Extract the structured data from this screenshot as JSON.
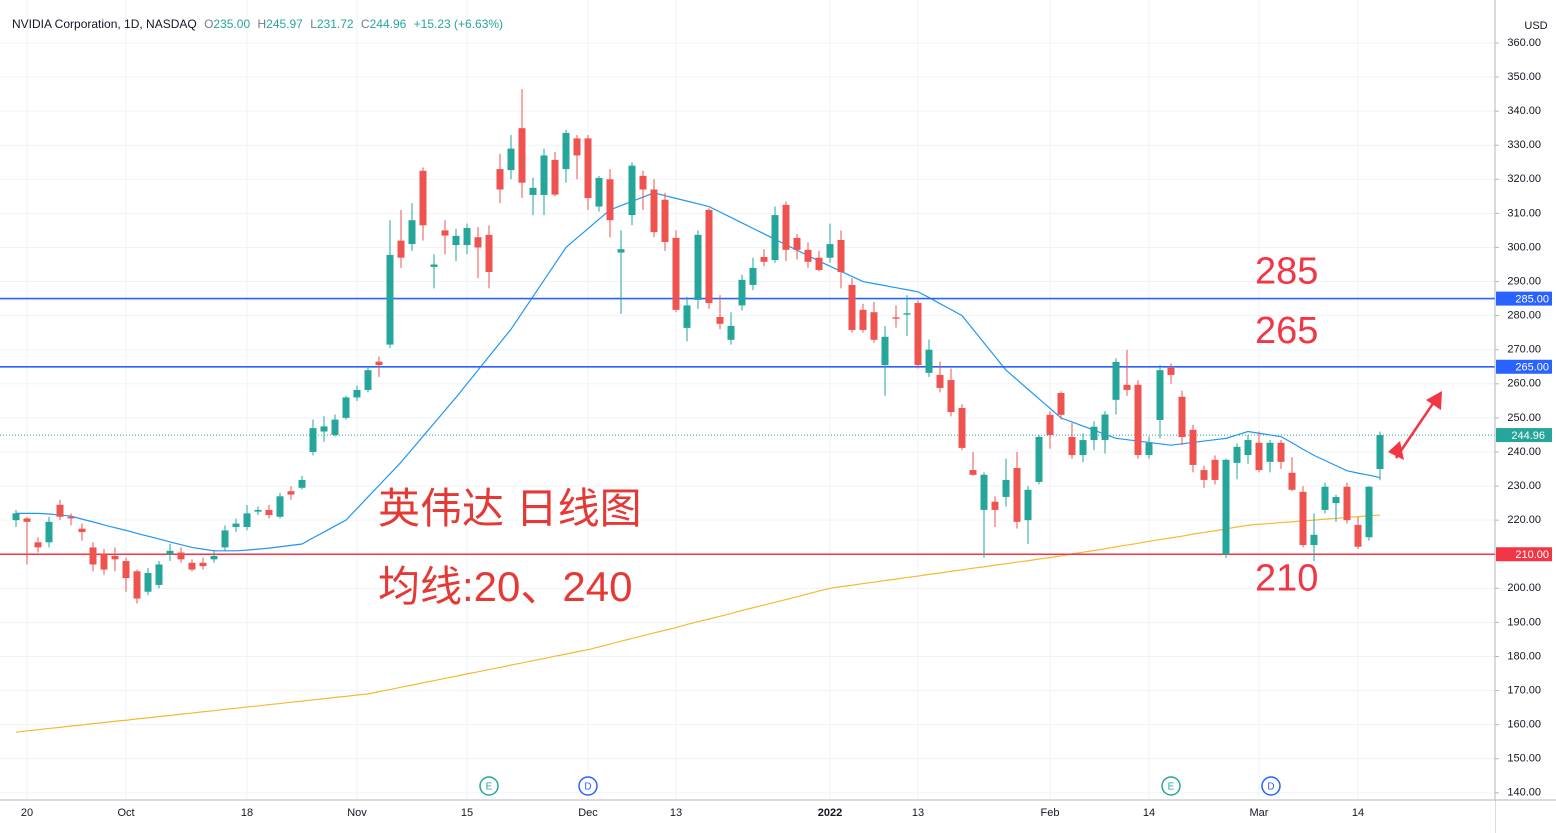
{
  "header": {
    "symbol": "NVIDIA Corporation, 1D, NASDAQ",
    "ohlc": [
      {
        "label": "O",
        "value": "235.00"
      },
      {
        "label": "H",
        "value": "245.97"
      },
      {
        "label": "L",
        "value": "231.72"
      },
      {
        "label": "C",
        "value": "244.96"
      }
    ],
    "change": "+15.23 (+6.63%)"
  },
  "chart_data": {
    "type": "candlestick",
    "categories": [
      null,
      "20",
      null,
      null,
      null,
      null,
      null,
      null,
      null,
      null,
      "Oct",
      null,
      null,
      null,
      null,
      null,
      null,
      null,
      null,
      null,
      null,
      "18",
      null,
      null,
      null,
      null,
      null,
      null,
      null,
      null,
      null,
      "Nov",
      null,
      null,
      null,
      null,
      null,
      null,
      null,
      null,
      null,
      "15",
      null,
      null,
      null,
      null,
      null,
      null,
      null,
      null,
      null,
      null,
      "Dec",
      null,
      null,
      null,
      null,
      null,
      null,
      null,
      "13",
      null,
      null,
      null,
      null,
      null,
      null,
      null,
      null,
      null,
      null,
      null,
      null,
      null,
      "2022",
      null,
      null,
      null,
      null,
      null,
      null,
      null,
      "13",
      null,
      null,
      null,
      null,
      null,
      null,
      null,
      null,
      null,
      null,
      null,
      "Feb",
      null,
      null,
      null,
      null,
      null,
      null,
      null,
      null,
      "14",
      null,
      null,
      null,
      null,
      null,
      null,
      null,
      null,
      null,
      "Mar",
      null,
      null,
      null,
      null,
      null,
      null,
      null,
      null,
      "14",
      null,
      null
    ],
    "open": [
      220,
      220.5,
      213.5,
      213.5,
      224.5,
      221,
      217.5,
      212,
      210,
      209.5,
      208,
      205,
      199,
      201,
      210,
      210.5,
      207.5,
      207.5,
      208.5,
      212,
      218,
      218,
      222.5,
      223,
      221,
      228.5,
      229.5,
      240,
      246,
      245,
      250,
      256,
      258.2,
      266.5,
      271.5,
      302,
      301,
      322.5,
      294.3,
      305,
      300.7,
      300.7,
      303,
      303.7,
      323,
      322.7,
      335,
      315.4,
      315.4,
      325.7,
      323,
      332,
      332,
      312,
      320,
      298.5,
      309.5,
      321,
      317,
      314,
      302.8,
      276.4,
      284.6,
      311,
      279.6,
      272.9,
      283,
      289,
      297.2,
      296.3,
      312.5,
      302.8,
      299.3,
      297,
      297,
      302.2,
      289,
      281.7,
      281,
      265.5,
      279.5,
      280.3,
      283.7,
      263.2,
      262.6,
      261.1,
      252.9,
      234.7,
      223,
      225.4,
      226.8,
      235.3,
      220,
      231.2,
      250.9,
      257.3,
      244.4,
      239.1,
      243.5,
      243.5,
      255.3,
      259.7,
      259.7,
      239.1,
      249.4,
      264.7,
      256.2,
      246.5,
      234.7,
      237.7,
      210,
      236.8,
      239.1,
      242.7,
      237.1,
      242.7,
      233.9,
      228.3,
      212.7,
      223,
      225,
      229.8,
      218.6,
      215,
      235
    ],
    "high": [
      223,
      221,
      215,
      221,
      226,
      222,
      219,
      213.5,
      211.5,
      212,
      209,
      205.5,
      206,
      208,
      213,
      212,
      208.5,
      209,
      211,
      218.5,
      220.5,
      224.5,
      224,
      224.5,
      228,
      230,
      233,
      249.5,
      250.5,
      251,
      256.5,
      259.5,
      265,
      268,
      308,
      311,
      313,
      323.5,
      298,
      308,
      305.5,
      307,
      306,
      306.5,
      327.5,
      333,
      346.5,
      320.5,
      329,
      328,
      334.5,
      333,
      333,
      321,
      323,
      305,
      325,
      322.5,
      320,
      316,
      305,
      285.5,
      305,
      311.5,
      286,
      281,
      292,
      297,
      299.5,
      312,
      313.5,
      304,
      301.5,
      299,
      307,
      305,
      291,
      283.5,
      284,
      277,
      283,
      286,
      284.5,
      273,
      266.5,
      264.5,
      254,
      240,
      234,
      227,
      238,
      240,
      230,
      245,
      252,
      257.8,
      248.5,
      245.5,
      249,
      252,
      267.5,
      270,
      261,
      244.5,
      265.5,
      266,
      258,
      248,
      236,
      239,
      238,
      242.5,
      245,
      246,
      243.5,
      243.5,
      238.5,
      230,
      222,
      231,
      227.5,
      231,
      221,
      230,
      245.97
    ],
    "low": [
      218,
      207,
      210.5,
      212,
      220,
      218.5,
      214,
      205,
      204,
      205,
      199,
      195.5,
      198,
      200,
      208,
      207.5,
      205,
      205.5,
      207.5,
      211,
      216.5,
      217,
      221.5,
      220.5,
      220.5,
      226,
      229,
      239,
      243,
      244.5,
      249.5,
      255,
      257.5,
      262,
      270.5,
      294,
      299,
      302,
      288,
      298,
      296,
      298,
      291,
      288,
      313,
      320,
      314.5,
      309.5,
      309.5,
      315,
      319,
      320,
      311,
      310.5,
      303,
      280.5,
      306.5,
      311,
      303,
      299,
      281,
      272.5,
      282,
      282,
      276,
      271.5,
      281.5,
      287.5,
      294.5,
      295.5,
      296,
      296.5,
      294,
      293,
      295.5,
      288,
      275,
      275,
      272,
      256.5,
      276.5,
      274,
      264.5,
      262,
      257.5,
      250.5,
      240.5,
      233,
      209,
      218,
      224,
      217.5,
      213,
      230.5,
      241,
      249.5,
      238,
      237,
      240.5,
      239.5,
      251,
      256.5,
      238,
      238,
      244,
      260,
      242,
      234,
      229.5,
      230.5,
      208.9,
      232,
      236.5,
      234,
      234,
      235,
      228.5,
      212,
      208,
      222,
      219.5,
      219,
      211.5,
      214,
      231.72
    ],
    "close": [
      222,
      219.5,
      212,
      219.5,
      221,
      220.5,
      216.5,
      207,
      205.5,
      208.5,
      203,
      197,
      204.5,
      207,
      211,
      208.5,
      205.5,
      206.5,
      209.5,
      217,
      219,
      222,
      223,
      221.5,
      227,
      227.5,
      231.8,
      247,
      247.5,
      249.5,
      256,
      258.2,
      264,
      265.5,
      297.8,
      297,
      308,
      306.5,
      295,
      303.5,
      303.4,
      305.7,
      300,
      292.8,
      317,
      329,
      319,
      317.5,
      327,
      315.5,
      333.6,
      327,
      314.5,
      320.4,
      308,
      299.5,
      324,
      317,
      304.5,
      301.6,
      281.7,
      283,
      303.7,
      283.7,
      277.6,
      277,
      290.5,
      294,
      295.8,
      309.5,
      299.3,
      299.3,
      295.8,
      293.4,
      301,
      292.8,
      275.8,
      275.8,
      272.9,
      273.8,
      279.1,
      280.7,
      265.5,
      270,
      258.8,
      251.7,
      241.2,
      233.3,
      233.3,
      223,
      231.8,
      219.5,
      228.9,
      244.4,
      245,
      250.9,
      239.1,
      243.5,
      247.4,
      251,
      266.4,
      258.2,
      239.1,
      242.7,
      264,
      262.6,
      244.4,
      236.2,
      231.8,
      231.8,
      237.7,
      241.5,
      243.5,
      234.7,
      242.7,
      237.1,
      228.9,
      212.7,
      215.7,
      229.8,
      226.8,
      220,
      212.2,
      229.8,
      244.96
    ],
    "up_color": "#26a69a",
    "down_color": "#ef5350",
    "series": [
      {
        "color": "#2196f3",
        "values": [
          222,
          222,
          222,
          221.8,
          221.5,
          221.2,
          220.3,
          219.5,
          218.6,
          217.8,
          217,
          216.1,
          215.3,
          214.5,
          213.6,
          212.8,
          212,
          211.5,
          211,
          211,
          211,
          211.2,
          211.5,
          211.8,
          212.2,
          212.6,
          213,
          214.8,
          216.5,
          218.3,
          220,
          223.4,
          226.8,
          230.2,
          233.6,
          237,
          240.8,
          244.6,
          248.4,
          252.2,
          256,
          260,
          264,
          268,
          272,
          276,
          280.8,
          285.6,
          290.4,
          295.2,
          300,
          302.8,
          305.5,
          308.3,
          311,
          312.3,
          313.5,
          314.8,
          316,
          315.2,
          314.4,
          313.6,
          312.8,
          312,
          310.4,
          308.8,
          307.2,
          305.6,
          304,
          302.4,
          300.8,
          299.2,
          297.6,
          296,
          294.5,
          293,
          291.5,
          290,
          289.4,
          288.8,
          288.2,
          287.6,
          287,
          285.3,
          283.5,
          281.8,
          280,
          276,
          272,
          268,
          264,
          261.2,
          258.4,
          255.6,
          252.8,
          250,
          248.8,
          247.6,
          246.4,
          245.2,
          244,
          243.6,
          243.2,
          242.8,
          242.4,
          242,
          242.4,
          242.8,
          243.2,
          243.6,
          244,
          245,
          246,
          245.5,
          245,
          244.5,
          242.7,
          240.8,
          239,
          237.5,
          236,
          234.5,
          233.8,
          233.2,
          232.5
        ]
      },
      {
        "color": "#f5b932",
        "values": [
          157.8,
          158.2,
          158.5,
          158.9,
          159.2,
          159.6,
          159.9,
          160.3,
          160.6,
          161,
          161.3,
          161.7,
          162,
          162.4,
          162.7,
          163.1,
          163.4,
          163.8,
          164.1,
          164.5,
          164.8,
          165.2,
          165.5,
          165.9,
          166.2,
          166.6,
          166.9,
          167.3,
          167.6,
          168,
          168.3,
          168.7,
          169,
          169.7,
          170.3,
          171,
          171.6,
          172.3,
          172.9,
          173.6,
          174.2,
          174.9,
          175.5,
          176.2,
          176.8,
          177.5,
          178.1,
          178.8,
          179.4,
          180.1,
          180.7,
          181.4,
          182,
          182.8,
          183.6,
          184.5,
          185.3,
          186.1,
          186.9,
          187.7,
          188.5,
          189.4,
          190.2,
          191,
          191.8,
          192.6,
          193.5,
          194.3,
          195.1,
          195.9,
          196.7,
          197.5,
          198.4,
          199.2,
          200,
          200.5,
          200.9,
          201.4,
          201.8,
          202.3,
          202.7,
          203.2,
          203.6,
          204.1,
          204.5,
          205,
          205.4,
          205.9,
          206.3,
          206.8,
          207.2,
          207.7,
          208.1,
          208.6,
          209,
          209.5,
          210.1,
          210.6,
          211.1,
          211.6,
          212.2,
          212.7,
          213.2,
          213.8,
          214.3,
          214.8,
          215.3,
          215.9,
          216.4,
          216.9,
          217.4,
          218,
          218.5,
          218.8,
          219,
          219.3,
          219.5,
          219.8,
          220,
          220.3,
          220.5,
          220.8,
          221,
          221.3,
          221.5
        ]
      }
    ],
    "ylim": [
      137.9,
      372.6
    ],
    "yticks": [
      {
        "value": 140,
        "label": "140.00"
      },
      {
        "value": 150,
        "label": "150.00"
      },
      {
        "value": 160,
        "label": "160.00"
      },
      {
        "value": 170,
        "label": "170.00"
      },
      {
        "value": 180,
        "label": "180.00"
      },
      {
        "value": 190,
        "label": "190.00"
      },
      {
        "value": 200,
        "label": "200.00"
      },
      {
        "value": 210,
        "label": "210.00"
      },
      {
        "value": 220,
        "label": "220.00"
      },
      {
        "value": 230,
        "label": "230.00"
      },
      {
        "value": 240,
        "label": "240.00"
      },
      {
        "value": 250,
        "label": "250.00"
      },
      {
        "value": 260,
        "label": "260.00"
      },
      {
        "value": 270,
        "label": "270.00"
      },
      {
        "value": 280,
        "label": "280.00"
      },
      {
        "value": 290,
        "label": "290.00"
      },
      {
        "value": 300,
        "label": "300.00"
      },
      {
        "value": 310,
        "label": "310.00"
      },
      {
        "value": 320,
        "label": "320.00"
      },
      {
        "value": 330,
        "label": "330.00"
      },
      {
        "value": 340,
        "label": "340.00"
      },
      {
        "value": 350,
        "label": "350.00"
      },
      {
        "value": 360,
        "label": "360.00"
      }
    ],
    "y_unit": "USD",
    "grid": true,
    "levels": [
      {
        "value": 285,
        "label": "285.00",
        "annotation": "285",
        "color": "#2962ff"
      },
      {
        "value": 265,
        "label": "265.00",
        "annotation": "265",
        "color": "#2962ff"
      },
      {
        "value": 210,
        "label": "210.00",
        "annotation": "210",
        "color": "#f23645"
      }
    ],
    "last_price": {
      "value": 244.96,
      "label": "244.96",
      "color": "#26a69a"
    },
    "annotations": [
      "英伟达 日线图",
      "均线:20、240"
    ],
    "event_markers": [
      "E",
      "D",
      "E",
      "D"
    ]
  }
}
